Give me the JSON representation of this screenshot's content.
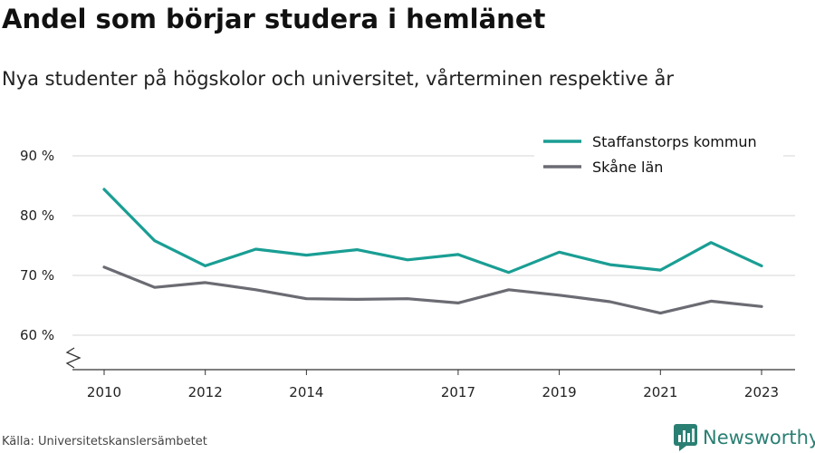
{
  "header": {
    "title": "Andel som börjar studera i hemlänet",
    "subtitle": "Nya studenter på högskolor och universitet, vårterminen respektive år"
  },
  "footer": {
    "source": "Källa: Universitetskanslersämbetet",
    "brand": "Newsworthy",
    "brand_icon": "newsworthy-logo-icon"
  },
  "colors": {
    "series_teal": "#1a9e94",
    "series_gray": "#6b6b73",
    "grid": "#d6d6d6",
    "axis": "#333333",
    "brand": "#2a7f73"
  },
  "chart_data": {
    "type": "line",
    "title": "Andel som börjar studera i hemlänet",
    "subtitle": "Nya studenter på högskolor och universitet, vårterminen respektive år",
    "x": [
      2010,
      2011,
      2012,
      2013,
      2014,
      2015,
      2016,
      2017,
      2018,
      2019,
      2020,
      2021,
      2022,
      2023
    ],
    "x_tick_labels": [
      "2010",
      "2012",
      "2014",
      "2017",
      "2019",
      "2021",
      "2023"
    ],
    "x_tick_values": [
      2010,
      2012,
      2014,
      2017,
      2019,
      2021,
      2023
    ],
    "y_tick_labels": [
      "90 %",
      "80 %",
      "70 %",
      "60 %"
    ],
    "y_tick_values": [
      90,
      80,
      70,
      60
    ],
    "ylim": [
      54,
      91
    ],
    "y_axis_broken": true,
    "grid": true,
    "legend_position": "top-right",
    "series": [
      {
        "name": "Staffanstorps kommun",
        "color": "#1a9e94",
        "values": [
          84.4,
          75.8,
          71.6,
          74.4,
          73.4,
          74.3,
          72.6,
          73.5,
          70.5,
          73.9,
          71.8,
          70.9,
          75.5,
          71.6
        ]
      },
      {
        "name": "Skåne län",
        "color": "#6b6b73",
        "values": [
          71.4,
          68.0,
          68.8,
          67.6,
          66.1,
          66.0,
          66.1,
          65.4,
          67.6,
          66.7,
          65.6,
          63.7,
          65.7,
          64.8
        ]
      }
    ]
  }
}
